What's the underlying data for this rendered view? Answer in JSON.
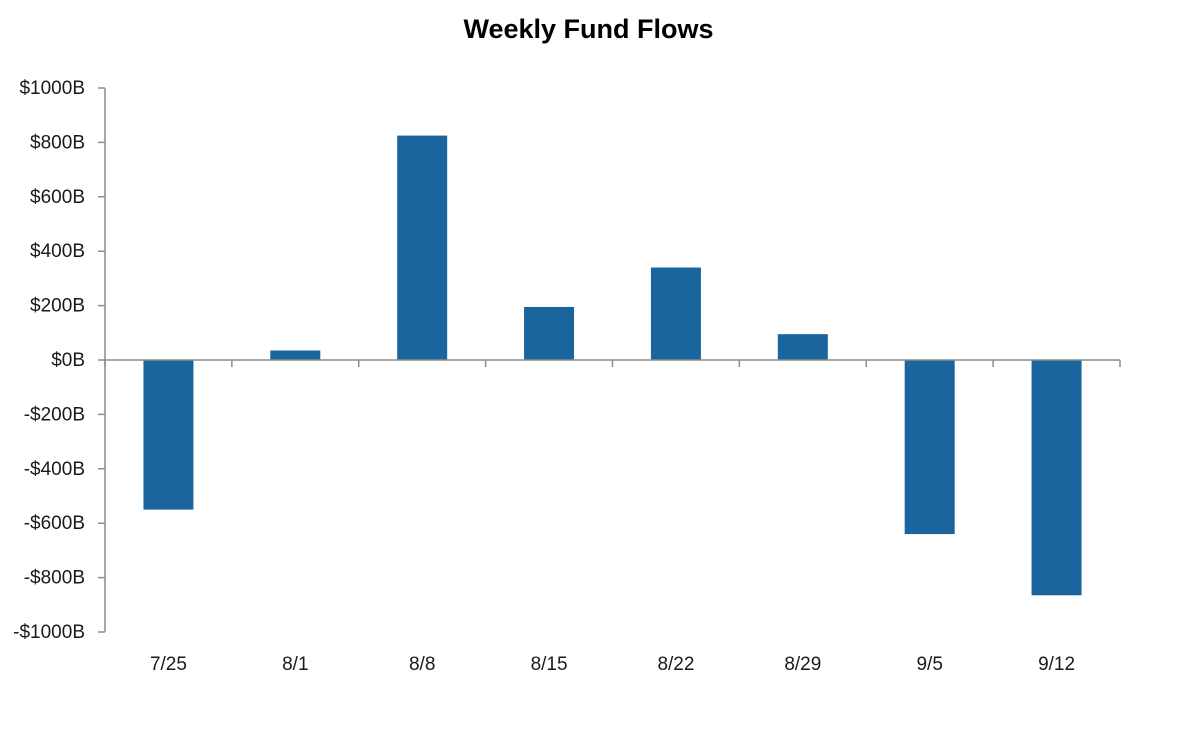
{
  "chart_data": {
    "type": "bar",
    "title": "Weekly Fund Flows",
    "xlabel": "",
    "ylabel": "",
    "categories": [
      "7/25",
      "8/1",
      "8/8",
      "8/15",
      "8/22",
      "8/29",
      "9/5",
      "9/12"
    ],
    "values": [
      -550,
      35,
      825,
      195,
      340,
      95,
      -640,
      -865
    ],
    "ylim": [
      -1000,
      1000
    ],
    "yticks": [
      1000,
      800,
      600,
      400,
      200,
      0,
      -200,
      -400,
      -600,
      -800,
      -1000
    ],
    "ytick_labels": [
      "$1000B",
      "$800B",
      "$600B",
      "$400B",
      "$200B",
      "$0B",
      "-$200B",
      "-$400B",
      "-$600B",
      "-$800B",
      "-$1000B"
    ],
    "grid": false,
    "legend": "none",
    "bar_color": "#1a659e",
    "axis_color": "#8c8c8c"
  }
}
